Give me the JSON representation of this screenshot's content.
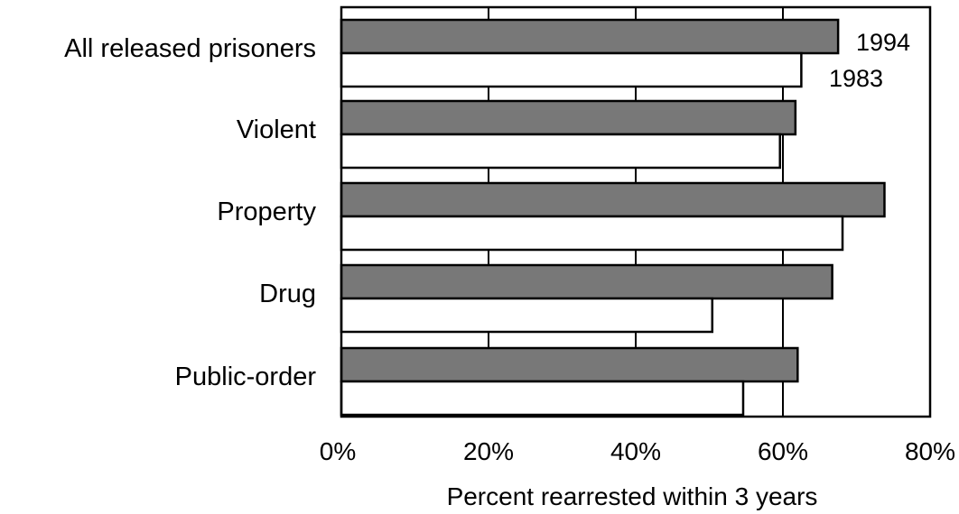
{
  "chart_data": {
    "type": "bar",
    "orientation": "horizontal",
    "categories": [
      "All released prisoners",
      "Violent",
      "Property",
      "Drug",
      "Public-order"
    ],
    "series": [
      {
        "name": "1994",
        "values": [
          67.5,
          61.7,
          73.8,
          66.7,
          62.0
        ],
        "color": "#787878"
      },
      {
        "name": "1983",
        "values": [
          62.5,
          59.6,
          68.1,
          50.4,
          54.6
        ],
        "color": "#ffffff"
      }
    ],
    "xlim": [
      0,
      80
    ],
    "xticks": [
      0,
      20,
      40,
      60,
      80
    ],
    "xtick_labels": [
      "0%",
      "20%",
      "40%",
      "60%",
      "80%"
    ],
    "xlabel": "Percent rearrested within 3 years",
    "ylabel": "",
    "title": "",
    "grid": "vertical",
    "legend": "inline labels beside first category bars"
  }
}
